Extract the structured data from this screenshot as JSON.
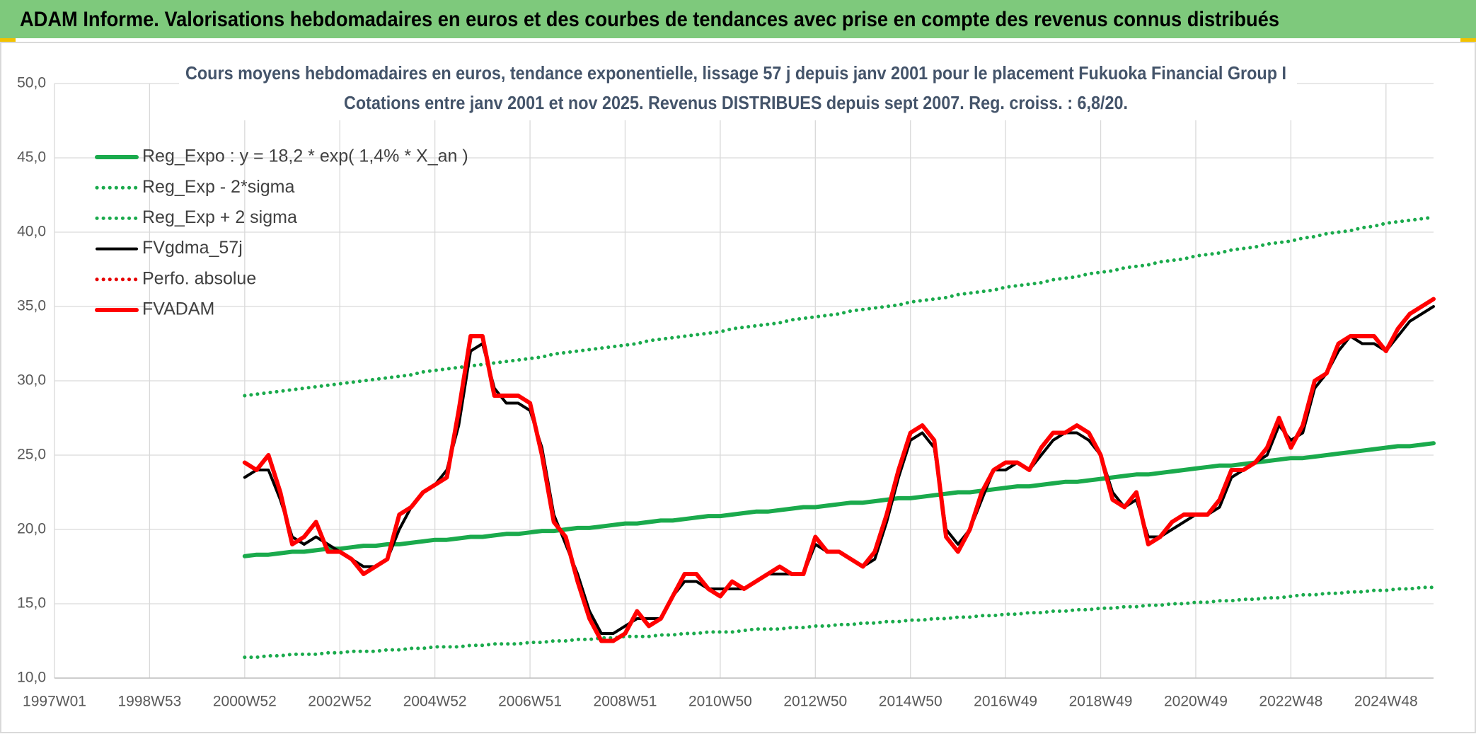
{
  "header": {
    "title": "ADAM Informe. Valorisations hebdomadaires en euros et des courbes de tendances avec prise en compte des revenus connus distribués"
  },
  "chart_data": {
    "type": "line",
    "title": "Cours moyens hebdomadaires en euros, tendance exponentielle, lissage 57 j depuis janv 2001 pour le placement Fukuoka Financial Group I",
    "subtitle": "Cotations entre janv 2001 et nov 2025. Revenus DISTRIBUES depuis sept 2007. Reg. croiss. : 6,8/20.",
    "categories": [
      "1997W01",
      null,
      null,
      null,
      null,
      null,
      null,
      null,
      "1998W53",
      null,
      null,
      null,
      null,
      null,
      null,
      null,
      "2000W52",
      null,
      null,
      null,
      null,
      null,
      null,
      null,
      "2002W52",
      null,
      null,
      null,
      null,
      null,
      null,
      null,
      "2004W52",
      null,
      null,
      null,
      null,
      null,
      null,
      null,
      "2006W51",
      null,
      null,
      null,
      null,
      null,
      null,
      null,
      "2008W51",
      null,
      null,
      null,
      null,
      null,
      null,
      null,
      "2010W50",
      null,
      null,
      null,
      null,
      null,
      null,
      null,
      "2012W50",
      null,
      null,
      null,
      null,
      null,
      null,
      null,
      "2014W50",
      null,
      null,
      null,
      null,
      null,
      null,
      null,
      "2016W49",
      null,
      null,
      null,
      null,
      null,
      null,
      null,
      "2018W49",
      null,
      null,
      null,
      null,
      null,
      null,
      null,
      "2020W49",
      null,
      null,
      null,
      null,
      null,
      null,
      null,
      "2022W48",
      null,
      null,
      null,
      null,
      null,
      null,
      null,
      "2024W48",
      null,
      null,
      null,
      null
    ],
    "ylim": [
      10,
      50
    ],
    "yticks": [
      {
        "value": 10,
        "label": "10,0"
      },
      {
        "value": 15,
        "label": "15,0"
      },
      {
        "value": 20,
        "label": "20,0"
      },
      {
        "value": 25,
        "label": "25,0"
      },
      {
        "value": 30,
        "label": "30,0"
      },
      {
        "value": 35,
        "label": "35,0"
      },
      {
        "value": 40,
        "label": "40,0"
      },
      {
        "value": 45,
        "label": "45,0"
      },
      {
        "value": 50,
        "label": "50,0"
      }
    ],
    "grid": true,
    "legend": "upper left",
    "series": [
      {
        "name": "Reg_Expo : y = 18,2 * exp( 1,4% *  X_an )",
        "color": "#1aaa4c",
        "line_style": "solid",
        "values": [
          null,
          null,
          null,
          null,
          null,
          null,
          null,
          null,
          null,
          null,
          null,
          null,
          null,
          null,
          null,
          null,
          18.2,
          18.3,
          18.3,
          18.4,
          18.5,
          18.5,
          18.6,
          18.7,
          18.7,
          18.8,
          18.9,
          18.9,
          19.0,
          19.0,
          19.1,
          19.2,
          19.3,
          19.3,
          19.4,
          19.5,
          19.5,
          19.6,
          19.7,
          19.7,
          19.8,
          19.9,
          19.9,
          20.0,
          20.1,
          20.1,
          20.2,
          20.3,
          20.4,
          20.4,
          20.5,
          20.6,
          20.6,
          20.7,
          20.8,
          20.9,
          20.9,
          21.0,
          21.1,
          21.2,
          21.2,
          21.3,
          21.4,
          21.5,
          21.5,
          21.6,
          21.7,
          21.8,
          21.8,
          21.9,
          22.0,
          22.1,
          22.1,
          22.2,
          22.3,
          22.4,
          22.5,
          22.5,
          22.6,
          22.7,
          22.8,
          22.9,
          22.9,
          23.0,
          23.1,
          23.2,
          23.2,
          23.3,
          23.4,
          23.5,
          23.6,
          23.7,
          23.7,
          23.8,
          23.9,
          24.0,
          24.1,
          24.2,
          24.3,
          24.3,
          24.4,
          24.5,
          24.6,
          24.7,
          24.8,
          24.8,
          24.9,
          25.0,
          25.1,
          25.2,
          25.3,
          25.4,
          25.5,
          25.6,
          25.6,
          25.7,
          25.8
        ]
      },
      {
        "name": "Reg_Exp - 2*sigma",
        "color": "#1aaa4c",
        "line_style": "dotted",
        "values": [
          null,
          null,
          null,
          null,
          null,
          null,
          null,
          null,
          null,
          null,
          null,
          null,
          null,
          null,
          null,
          null,
          11.4,
          11.4,
          11.5,
          11.5,
          11.6,
          11.6,
          11.6,
          11.7,
          11.7,
          11.8,
          11.8,
          11.8,
          11.9,
          11.9,
          12.0,
          12.0,
          12.1,
          12.1,
          12.1,
          12.2,
          12.2,
          12.3,
          12.3,
          12.3,
          12.4,
          12.4,
          12.5,
          12.5,
          12.6,
          12.6,
          12.7,
          12.7,
          12.8,
          12.8,
          12.8,
          12.9,
          12.9,
          13.0,
          13.0,
          13.1,
          13.1,
          13.1,
          13.2,
          13.3,
          13.3,
          13.3,
          13.4,
          13.4,
          13.5,
          13.5,
          13.6,
          13.6,
          13.7,
          13.7,
          13.8,
          13.8,
          13.9,
          13.9,
          14.0,
          14.0,
          14.1,
          14.1,
          14.2,
          14.2,
          14.3,
          14.3,
          14.4,
          14.4,
          14.5,
          14.5,
          14.6,
          14.6,
          14.7,
          14.7,
          14.8,
          14.8,
          14.9,
          14.9,
          15.0,
          15.0,
          15.1,
          15.1,
          15.2,
          15.2,
          15.3,
          15.3,
          15.4,
          15.4,
          15.5,
          15.6,
          15.6,
          15.7,
          15.7,
          15.8,
          15.8,
          15.9,
          15.9,
          16.0,
          16.0,
          16.1,
          16.1
        ]
      },
      {
        "name": "Reg_Exp + 2 sigma",
        "color": "#1aaa4c",
        "line_style": "dotted",
        "values": [
          null,
          null,
          null,
          null,
          null,
          null,
          null,
          null,
          null,
          null,
          null,
          null,
          null,
          null,
          null,
          null,
          29.0,
          29.1,
          29.2,
          29.3,
          29.4,
          29.5,
          29.6,
          29.7,
          29.8,
          29.9,
          30.0,
          30.1,
          30.2,
          30.3,
          30.4,
          30.6,
          30.7,
          30.8,
          30.9,
          31.0,
          31.1,
          31.2,
          31.3,
          31.4,
          31.5,
          31.6,
          31.8,
          31.9,
          32.0,
          32.1,
          32.2,
          32.3,
          32.4,
          32.5,
          32.7,
          32.8,
          32.9,
          33.0,
          33.1,
          33.2,
          33.3,
          33.5,
          33.6,
          33.7,
          33.8,
          33.9,
          34.1,
          34.2,
          34.3,
          34.4,
          34.5,
          34.7,
          34.8,
          34.9,
          35.0,
          35.1,
          35.3,
          35.4,
          35.5,
          35.6,
          35.8,
          35.9,
          36.0,
          36.1,
          36.3,
          36.4,
          36.5,
          36.6,
          36.8,
          36.9,
          37.0,
          37.2,
          37.3,
          37.4,
          37.6,
          37.7,
          37.8,
          38.0,
          38.1,
          38.2,
          38.4,
          38.5,
          38.6,
          38.8,
          38.9,
          39.0,
          39.2,
          39.3,
          39.4,
          39.6,
          39.7,
          39.9,
          40.0,
          40.1,
          40.3,
          40.4,
          40.6,
          40.7,
          40.8,
          40.9,
          41.0
        ]
      },
      {
        "name": "FVgdma_57j",
        "color": "#000000",
        "line_style": "solid",
        "values": [
          null,
          null,
          null,
          null,
          null,
          null,
          null,
          null,
          null,
          null,
          null,
          null,
          null,
          null,
          null,
          null,
          23.5,
          24.0,
          24.0,
          22.0,
          19.5,
          19.0,
          19.5,
          19.0,
          18.5,
          18.0,
          17.5,
          17.5,
          18.0,
          20.0,
          21.5,
          22.5,
          23.0,
          24.0,
          27.0,
          32.0,
          32.5,
          29.5,
          28.5,
          28.5,
          28.0,
          25.5,
          21.0,
          19.0,
          17.0,
          14.5,
          13.0,
          13.0,
          13.5,
          14.0,
          14.0,
          14.0,
          15.5,
          16.5,
          16.5,
          16.0,
          16.0,
          16.0,
          16.0,
          16.5,
          17.0,
          17.0,
          17.0,
          17.0,
          19.0,
          18.5,
          18.5,
          18.0,
          17.5,
          18.0,
          20.5,
          23.5,
          26.0,
          26.5,
          25.5,
          20.0,
          19.0,
          20.0,
          22.0,
          24.0,
          24.0,
          24.5,
          24.0,
          25.0,
          26.0,
          26.5,
          26.5,
          26.0,
          25.0,
          22.5,
          21.5,
          22.0,
          19.5,
          19.5,
          20.0,
          20.5,
          21.0,
          21.0,
          21.5,
          23.5,
          24.0,
          24.5,
          25.0,
          27.0,
          26.0,
          26.5,
          29.5,
          30.5,
          32.0,
          33.0,
          32.5,
          32.5,
          32.0,
          33.0,
          34.0,
          34.5,
          35.0
        ]
      },
      {
        "name": "Perfo. absolue",
        "color": "#e60000",
        "line_style": "dotted",
        "values": [
          null,
          null,
          null,
          null,
          null,
          null,
          null,
          null,
          null,
          null,
          null,
          null,
          null,
          null,
          null,
          null,
          null,
          null,
          null,
          null,
          null,
          null,
          null,
          null,
          null,
          null,
          null,
          null,
          null,
          null,
          null,
          null,
          null,
          null,
          null,
          null,
          null,
          null,
          null,
          null,
          null,
          null,
          null,
          null,
          null,
          null,
          null,
          null,
          null,
          null,
          null,
          null,
          null,
          null,
          null,
          null,
          null,
          null,
          null,
          null,
          null,
          null,
          null,
          null,
          null,
          null,
          null,
          null,
          null,
          null,
          null,
          null,
          null,
          null,
          null,
          null,
          null,
          null,
          null,
          null,
          null,
          null,
          null,
          null,
          null,
          null,
          null,
          null,
          null,
          null,
          null,
          null,
          null,
          null,
          null,
          null,
          null,
          null,
          null,
          null,
          null,
          null,
          null,
          null,
          null,
          null,
          null,
          null,
          null,
          null,
          null,
          null,
          null,
          null,
          null,
          null,
          null
        ]
      },
      {
        "name": "FVADAM",
        "color": "#ff0000",
        "line_style": "solid",
        "values": [
          null,
          null,
          null,
          null,
          null,
          null,
          null,
          null,
          null,
          null,
          null,
          null,
          null,
          null,
          null,
          null,
          24.5,
          24.0,
          25.0,
          22.5,
          19.0,
          19.5,
          20.5,
          18.5,
          18.5,
          18.0,
          17.0,
          17.5,
          18.0,
          21.0,
          21.5,
          22.5,
          23.0,
          23.5,
          28.0,
          33.0,
          33.0,
          29.0,
          29.0,
          29.0,
          28.5,
          25.0,
          20.5,
          19.5,
          16.5,
          14.0,
          12.5,
          12.5,
          13.0,
          14.5,
          13.5,
          14.0,
          15.5,
          17.0,
          17.0,
          16.0,
          15.5,
          16.5,
          16.0,
          16.5,
          17.0,
          17.5,
          17.0,
          17.0,
          19.5,
          18.5,
          18.5,
          18.0,
          17.5,
          18.5,
          21.0,
          24.0,
          26.5,
          27.0,
          26.0,
          19.5,
          18.5,
          20.0,
          22.5,
          24.0,
          24.5,
          24.5,
          24.0,
          25.5,
          26.5,
          26.5,
          27.0,
          26.5,
          25.0,
          22.0,
          21.5,
          22.5,
          19.0,
          19.5,
          20.5,
          21.0,
          21.0,
          21.0,
          22.0,
          24.0,
          24.0,
          24.5,
          25.5,
          27.5,
          25.5,
          27.0,
          30.0,
          30.5,
          32.5,
          33.0,
          33.0,
          33.0,
          32.0,
          33.5,
          34.5,
          35.0,
          35.5
        ]
      }
    ]
  }
}
